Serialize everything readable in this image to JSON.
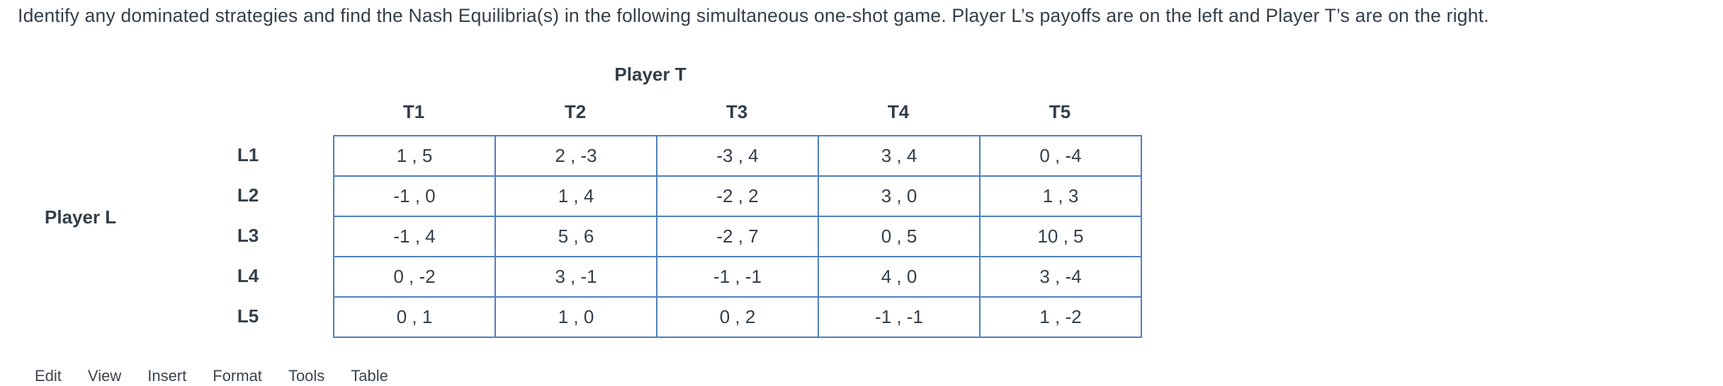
{
  "title": "Identify any dominated strategies and find the Nash Equilibria(s) in the following simultaneous one-shot game. Player L’s payoffs are on the left and Player T’s are on the right.",
  "players": {
    "column_player": "Player T",
    "row_player": "Player L"
  },
  "matrix": {
    "column_headers": [
      "T1",
      "T2",
      "T3",
      "T4",
      "T5"
    ],
    "row_headers": [
      "L1",
      "L2",
      "L3",
      "L4",
      "L5"
    ],
    "rows": [
      [
        "1 , 5",
        "2 , -3",
        "-3 , 4",
        "3 , 4",
        "0 , -4"
      ],
      [
        "-1 , 0",
        "1 , 4",
        "-2 , 2",
        "3 , 0",
        "1 , 3"
      ],
      [
        "-1 , 4",
        "5 , 6",
        "-2 , 7",
        "0 , 5",
        "10 , 5"
      ],
      [
        "0 , -2",
        "3 , -1",
        "-1 , -1",
        "4 , 0",
        "3 , -4"
      ],
      [
        "0 , 1",
        "1 , 0",
        "0 , 2",
        "-1 , -1",
        "1 , -2"
      ]
    ]
  },
  "menubar": {
    "items": [
      "Edit",
      "View",
      "Insert",
      "Format",
      "Tools",
      "Table"
    ]
  },
  "colors": {
    "table_border": "#4e80bd",
    "text": "#333e49"
  }
}
